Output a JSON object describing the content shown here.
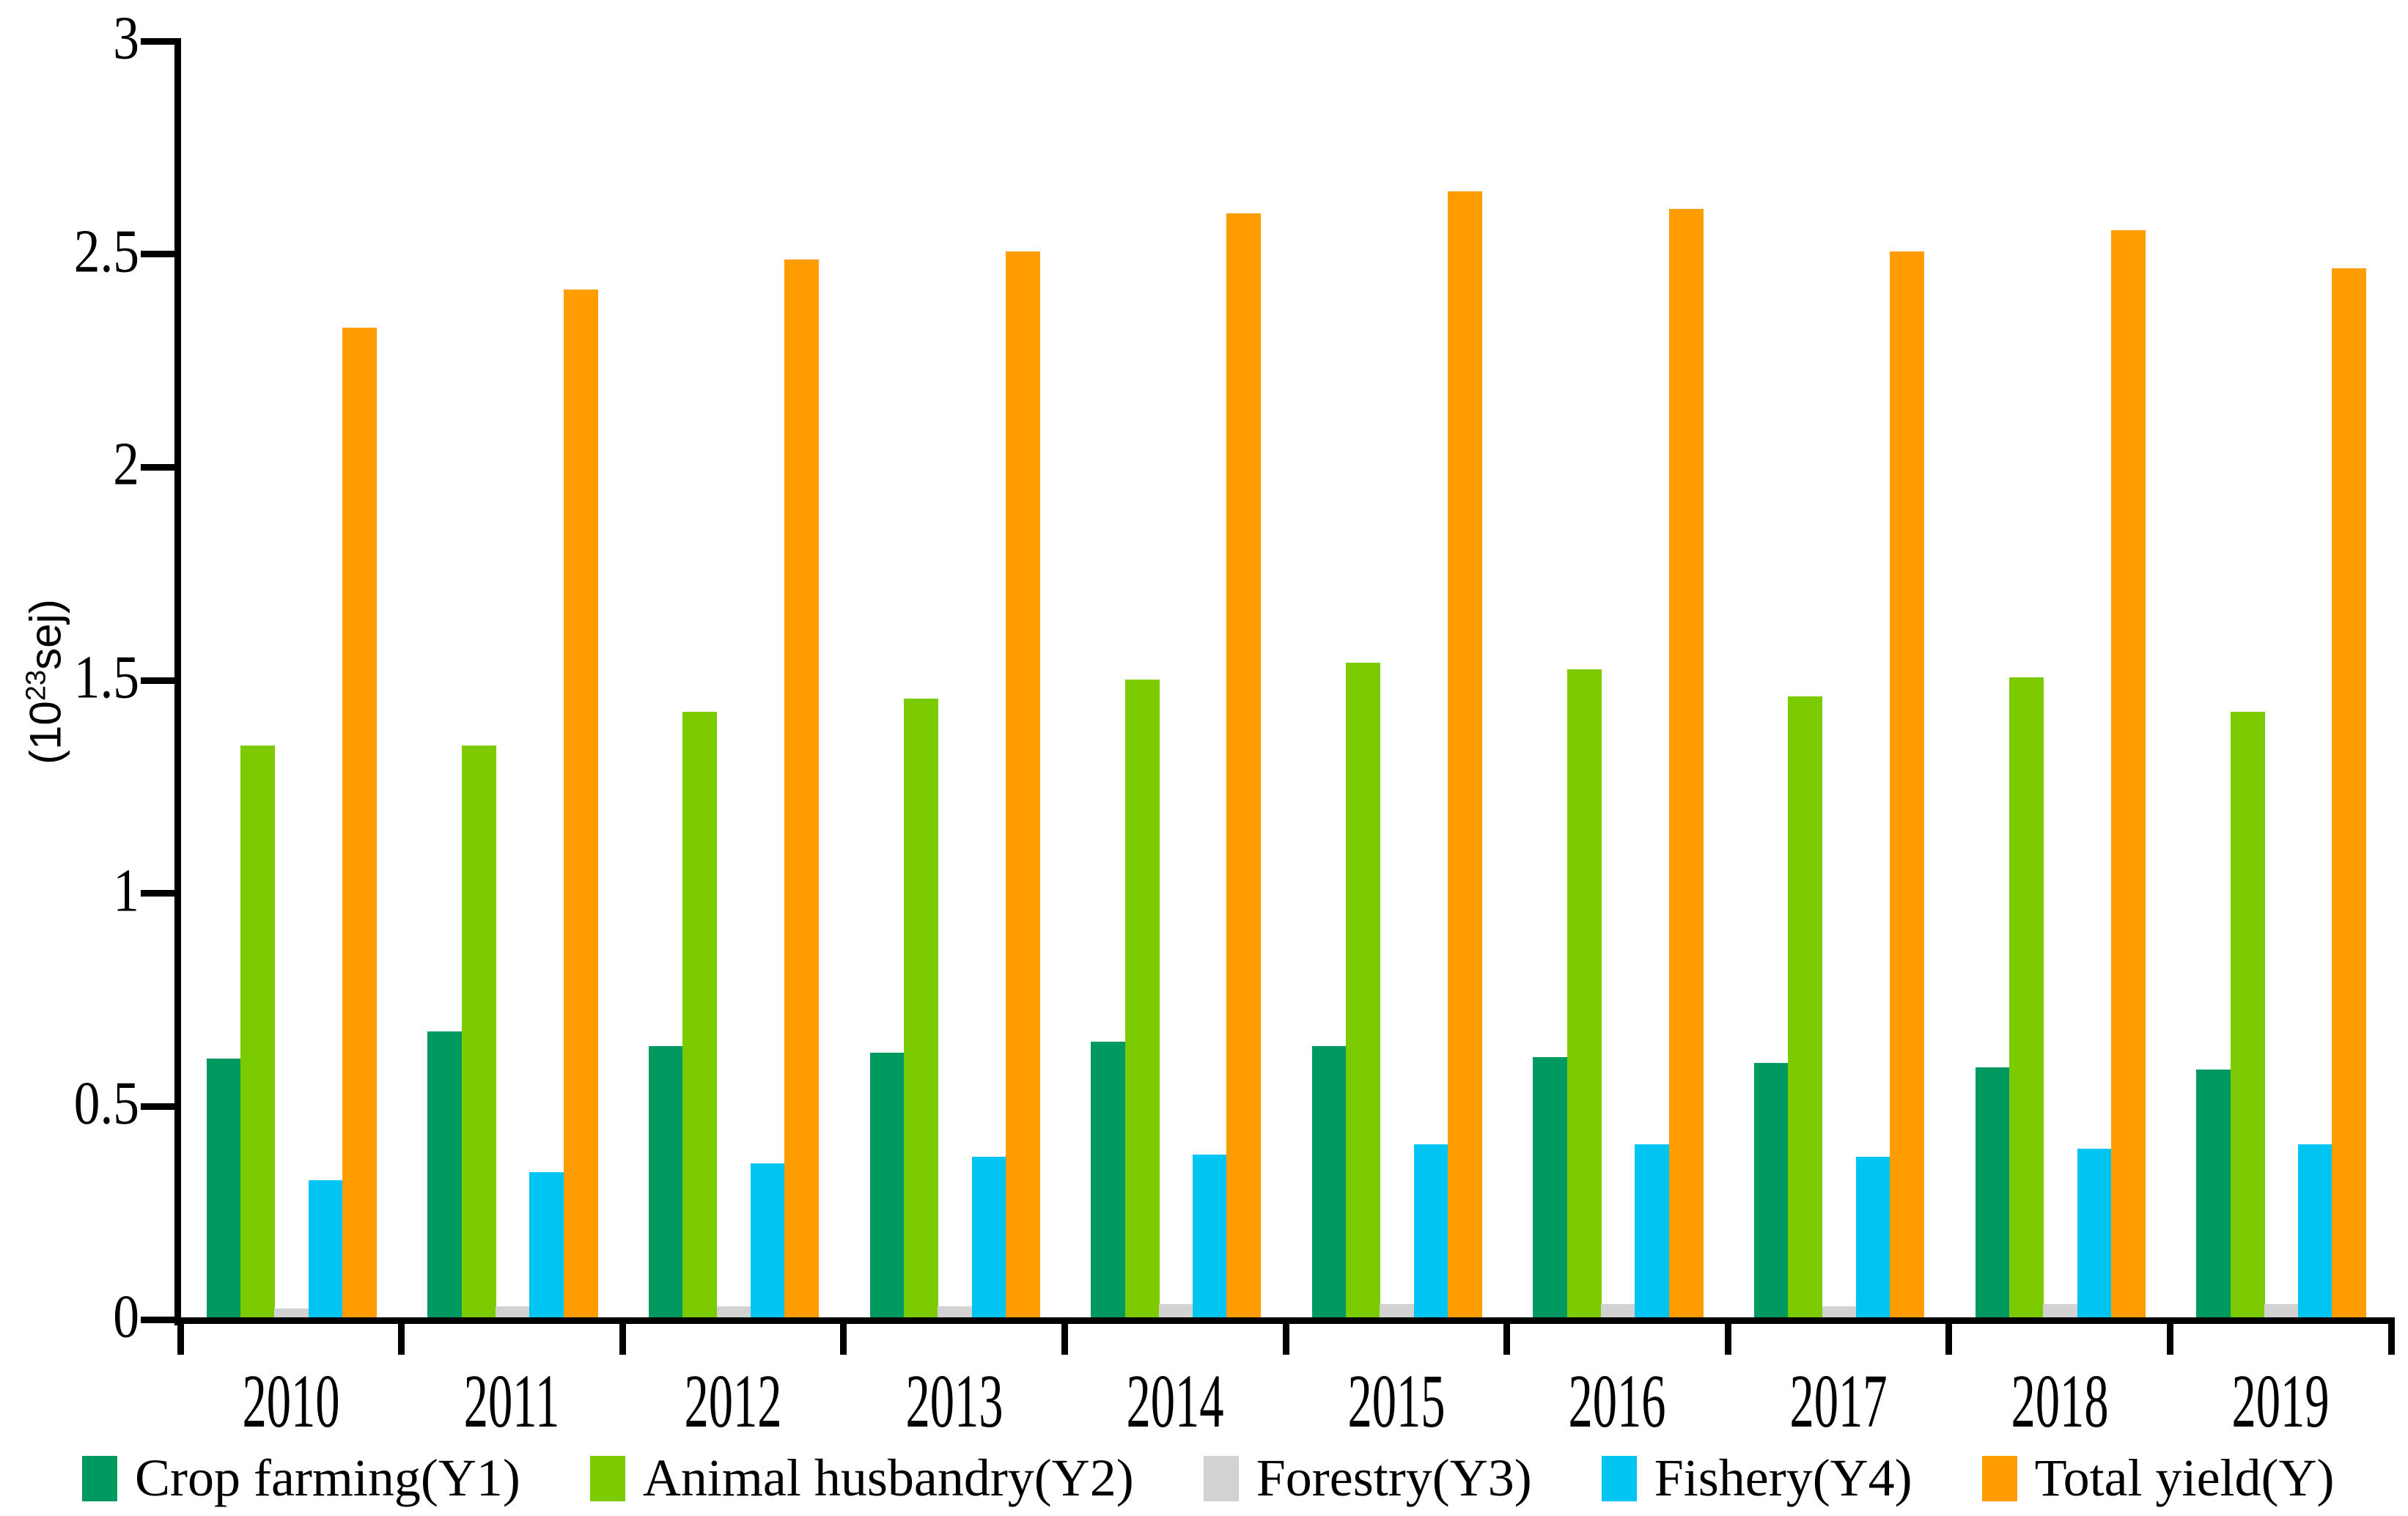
{
  "chart_data": {
    "type": "bar",
    "title": "",
    "xlabel": "",
    "ylabel_prefix": "(10",
    "ylabel_sup": "23",
    "ylabel_suffix": "sej)",
    "ylim": [
      0,
      3
    ],
    "yticks": [
      "0",
      "0.5",
      "1",
      "1.5",
      "2",
      "2.5",
      "3"
    ],
    "grid": false,
    "legend_position": "bottom",
    "categories": [
      "2010",
      "2011",
      "2012",
      "2013",
      "2014",
      "2015",
      "2016",
      "2017",
      "2018",
      "2019"
    ],
    "series": [
      {
        "name": "Crop farming(Y1)",
        "color": "#009960",
        "values": [
          0.615,
          0.68,
          0.645,
          0.63,
          0.655,
          0.645,
          0.62,
          0.605,
          0.595,
          0.59
        ]
      },
      {
        "name": "Animal husbandry(Y2)",
        "color": "#7CCB00",
        "values": [
          1.35,
          1.35,
          1.43,
          1.46,
          1.505,
          1.545,
          1.53,
          1.465,
          1.51,
          1.43
        ]
      },
      {
        "name": "Forestry(Y3)",
        "color": "#D2D2D2",
        "values": [
          0.03,
          0.035,
          0.035,
          0.035,
          0.04,
          0.04,
          0.04,
          0.035,
          0.04,
          0.04
        ]
      },
      {
        "name": "Fishery(Y4)",
        "color": "#00C5F2",
        "values": [
          0.33,
          0.35,
          0.37,
          0.385,
          0.39,
          0.415,
          0.415,
          0.385,
          0.405,
          0.415
        ]
      },
      {
        "name": "Total yield(Y)",
        "color": "#FF9C00",
        "values": [
          2.33,
          2.42,
          2.49,
          2.51,
          2.6,
          2.65,
          2.61,
          2.51,
          2.56,
          2.47
        ]
      }
    ]
  }
}
